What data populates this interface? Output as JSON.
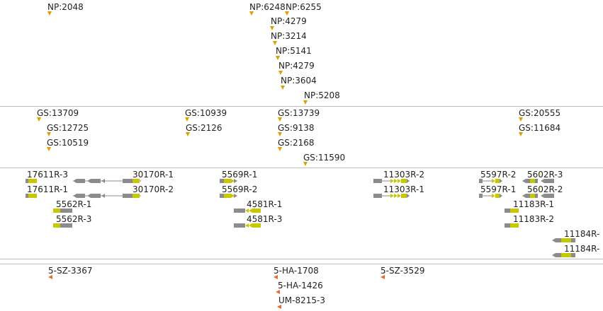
{
  "tracks": {
    "np": {
      "features": [
        {
          "label": "NP:2048"
        },
        {
          "label": "NP:6248"
        },
        {
          "label": "NP:6255"
        },
        {
          "label": "NP:4279"
        },
        {
          "label": "NP:3214"
        },
        {
          "label": "NP:5141"
        },
        {
          "label": "NP:4279"
        },
        {
          "label": "NP:3604"
        },
        {
          "label": "NP:5208"
        }
      ],
      "color": "#d9a000"
    },
    "gs": {
      "features": [
        {
          "label": "GS:13709"
        },
        {
          "label": "GS:12725"
        },
        {
          "label": "GS:10519"
        },
        {
          "label": "GS:10939"
        },
        {
          "label": "GS:2126"
        },
        {
          "label": "GS:13739"
        },
        {
          "label": "GS:9138"
        },
        {
          "label": "GS:2168"
        },
        {
          "label": "GS:11590"
        },
        {
          "label": "GS:20555"
        },
        {
          "label": "GS:11684"
        }
      ],
      "color": "#d9a000"
    },
    "genes": {
      "features": [
        {
          "label": "17611R-3",
          "strand": "-"
        },
        {
          "label": "17611R-1",
          "strand": "-"
        },
        {
          "label": "30170R-1",
          "strand": "-"
        },
        {
          "label": "30170R-2",
          "strand": "-"
        },
        {
          "label": "5562R-1",
          "strand": "-"
        },
        {
          "label": "5562R-3",
          "strand": "-"
        },
        {
          "label": "5569R-1",
          "strand": "+"
        },
        {
          "label": "5569R-2",
          "strand": "+"
        },
        {
          "label": "4581R-1",
          "strand": "-"
        },
        {
          "label": "4581R-3",
          "strand": "-"
        },
        {
          "label": "11303R-2",
          "strand": "+"
        },
        {
          "label": "11303R-1",
          "strand": "+"
        },
        {
          "label": "5597R-2",
          "strand": "+"
        },
        {
          "label": "5597R-1",
          "strand": "+"
        },
        {
          "label": "5602R-3",
          "strand": "-"
        },
        {
          "label": "5602R-2",
          "strand": "-"
        },
        {
          "label": "11183R-1",
          "strand": "-"
        },
        {
          "label": "11183R-2",
          "strand": "-"
        },
        {
          "label": "11184R-",
          "strand": "-"
        },
        {
          "label": "11184R-",
          "strand": "-"
        }
      ],
      "exon_color": "#8c8c8c",
      "utr_color": "#c8c800"
    },
    "probes": {
      "features": [
        {
          "label": "5-SZ-3367"
        },
        {
          "label": "5-HA-1708"
        },
        {
          "label": "5-HA-1426"
        },
        {
          "label": "UM-8215-3"
        },
        {
          "label": "5-SZ-3529"
        }
      ],
      "color": "#ee6633"
    }
  }
}
